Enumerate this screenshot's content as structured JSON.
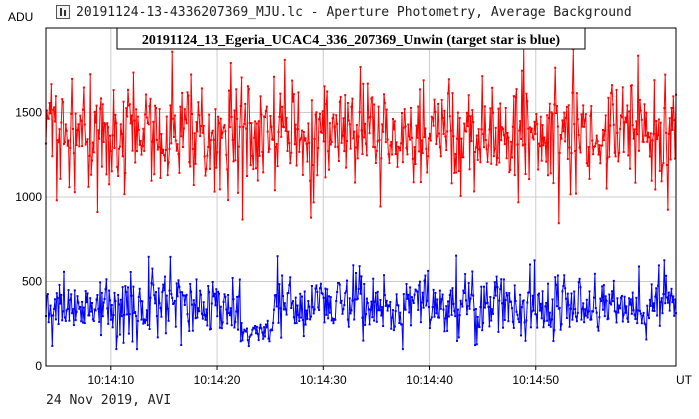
{
  "window": {
    "title": "20191124-13-4336207369_MJU.lc - Aperture Photometry, Average Background"
  },
  "footer": {
    "date_text": "24 Nov 2019, AVI"
  },
  "chart_data": {
    "type": "line",
    "title": "20191124_13_Egeria_UCAC4_336_207369_Unwin (target star is blue)",
    "ylabel": "ADU",
    "xlabel": "UT",
    "ylim": [
      0,
      2000
    ],
    "yticks": [
      0,
      500,
      1000,
      1500
    ],
    "x_tick_labels": [
      "10:14:10",
      "10:14:20",
      "10:14:30",
      "10:14:40",
      "10:14:50"
    ],
    "x_tick_seconds": [
      10,
      20,
      30,
      40,
      50
    ],
    "x_range_seconds": [
      3.9,
      63.2
    ],
    "grid": true,
    "series": [
      {
        "color": "#ff0000",
        "summary": {
          "mean": 1380,
          "range": [
            800,
            1900
          ]
        }
      },
      {
        "color": "#0000ff",
        "summary": {
          "mean": 360,
          "range": [
            100,
            680
          ]
        }
      }
    ]
  }
}
